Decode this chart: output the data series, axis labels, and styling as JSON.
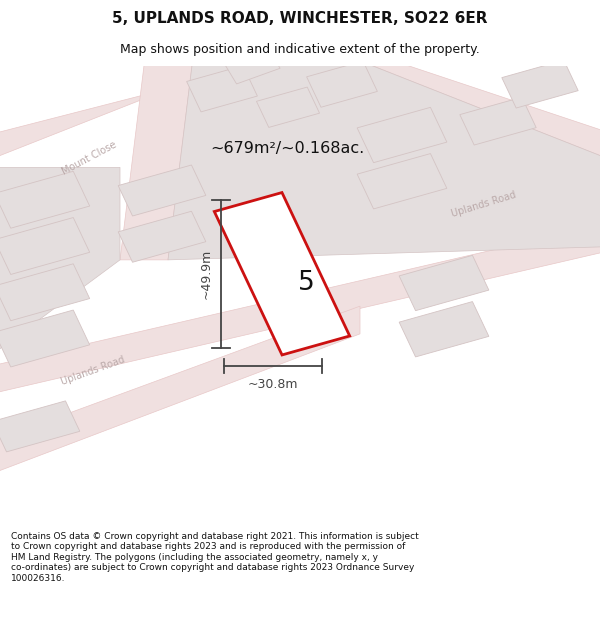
{
  "title": "5, UPLANDS ROAD, WINCHESTER, SO22 6ER",
  "subtitle": "Map shows position and indicative extent of the property.",
  "area_text": "~679m²/~0.168ac.",
  "dim_width": "~30.8m",
  "dim_height": "~49.9m",
  "property_number": "5",
  "footer": "Contains OS data © Crown copyright and database right 2021. This information is subject to Crown copyright and database rights 2023 and is reproduced with the permission of HM Land Registry. The polygons (including the associated geometry, namely x, y co-ordinates) are subject to Crown copyright and database rights 2023 Ordnance Survey 100026316.",
  "map_bg": "#f7f3f3",
  "road_fill": "#f0e0e0",
  "road_line": "#e8c8c8",
  "block_fill": "#e4dede",
  "block_edge": "#d4c4c4",
  "property_fill": "#ffffff",
  "property_edge": "#cc1111",
  "dim_color": "#444444",
  "label_color": "#bbaaaa",
  "text_dark": "#111111",
  "title_size": 11,
  "subtitle_size": 9,
  "footer_size": 6.5
}
